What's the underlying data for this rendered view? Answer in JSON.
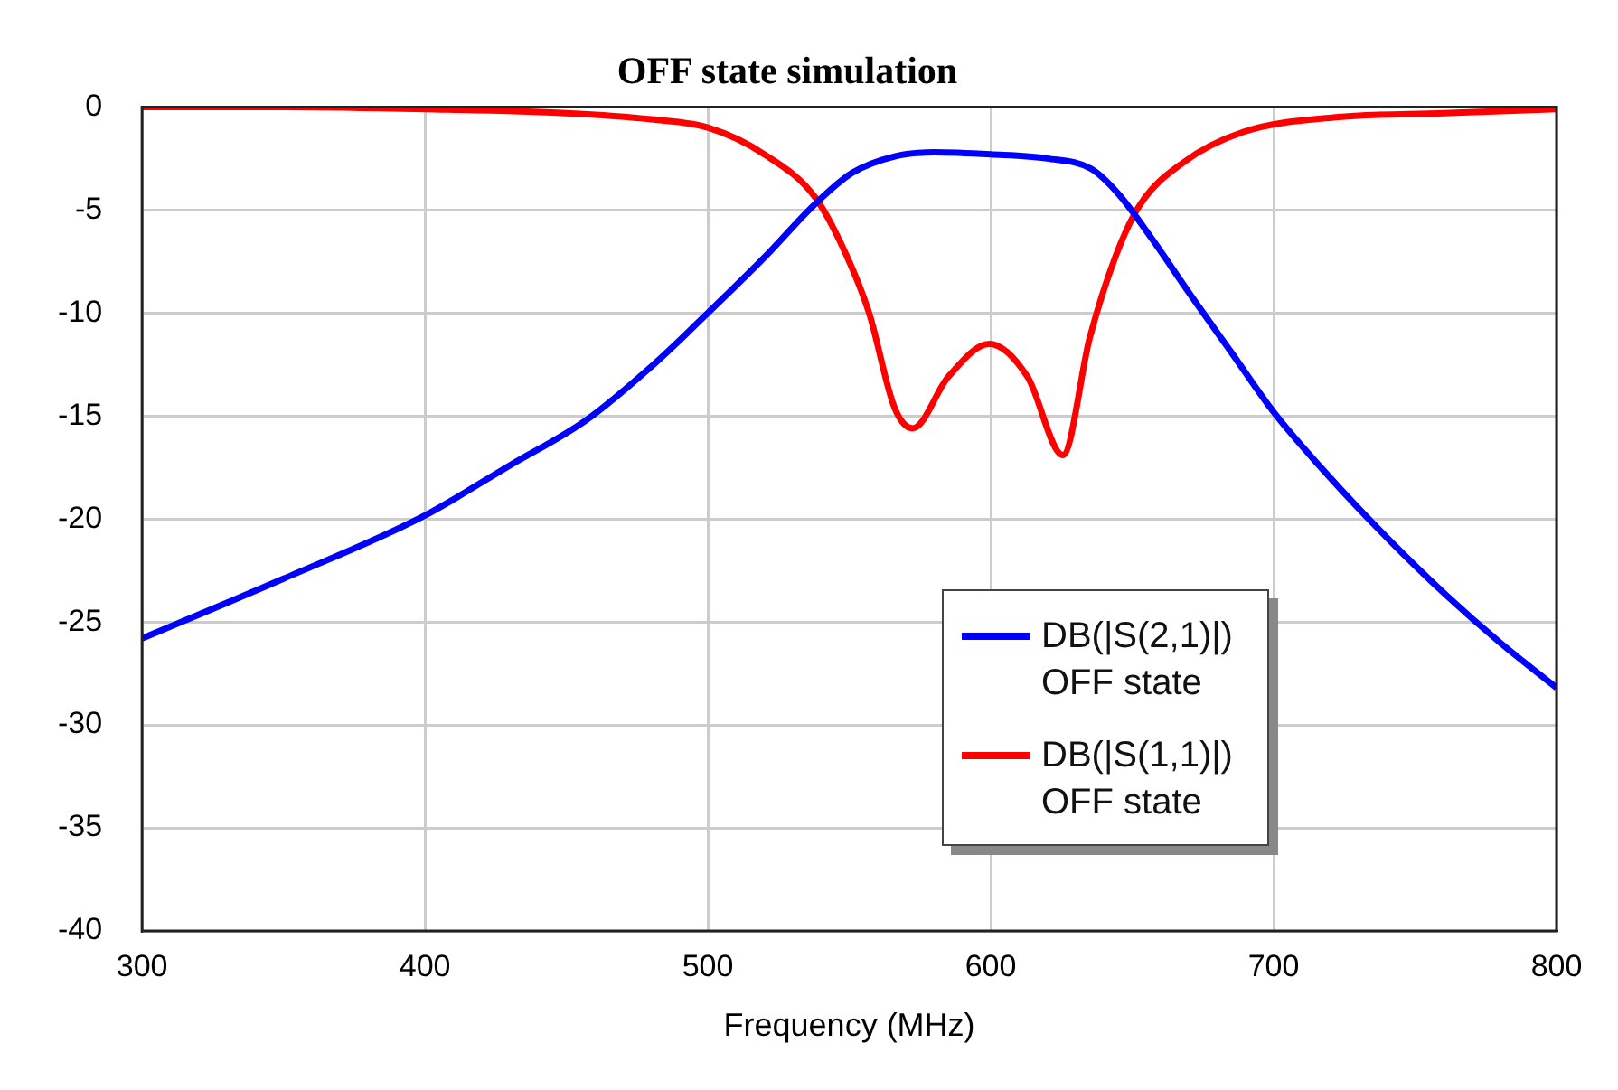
{
  "chart_data": {
    "type": "line",
    "title": "OFF state simulation",
    "xlabel": "Frequency (MHz)",
    "xlim": [
      300,
      800
    ],
    "xticks": [
      300,
      400,
      500,
      600,
      700,
      800
    ],
    "ylim": [
      -40,
      0
    ],
    "yticks": [
      0,
      -5,
      -10,
      -15,
      -20,
      -25,
      -30,
      -35,
      -40
    ],
    "grid": true,
    "legend": "bottom right",
    "marker": "none",
    "line_style": "solid",
    "series": [
      {
        "name": "DB(|S(2,1)|) OFF state",
        "color": "#0000ff",
        "x": [
          300,
          350,
          399,
          430,
          457,
          480,
          500,
          520,
          538,
          551,
          566,
          580,
          600,
          620,
          635.5,
          645,
          657,
          670,
          685,
          700.5,
          720,
          740,
          761,
          780,
          800
        ],
        "values": [
          -25.8,
          -22.9,
          -19.9,
          -17.4,
          -15.2,
          -12.6,
          -10.0,
          -7.3,
          -4.7,
          -3.2,
          -2.4,
          -2.2,
          -2.3,
          -2.5,
          -3.0,
          -4.2,
          -6.4,
          -9.0,
          -11.9,
          -14.9,
          -18.0,
          -20.9,
          -23.7,
          -26.0,
          -28.2
        ]
      },
      {
        "name": "DB(|S(1,1)|) OFF state",
        "color": "#ff0000",
        "x": [
          300,
          350,
          400,
          450,
          480,
          500,
          520,
          538,
          549,
          557,
          566,
          572.4,
          585,
          599.5,
          613,
          625.5,
          635,
          644,
          652.5,
          668,
          689.5,
          722,
          760,
          800
        ],
        "values": [
          0,
          0,
          -0.1,
          -0.3,
          -0.6,
          -1.0,
          -2.3,
          -4.4,
          -7.2,
          -10.0,
          -14.6,
          -15.6,
          -13.1,
          -11.5,
          -13.1,
          -16.9,
          -11.2,
          -7.3,
          -4.8,
          -2.7,
          -1.2,
          -0.5,
          -0.3,
          -0.1
        ]
      }
    ]
  }
}
